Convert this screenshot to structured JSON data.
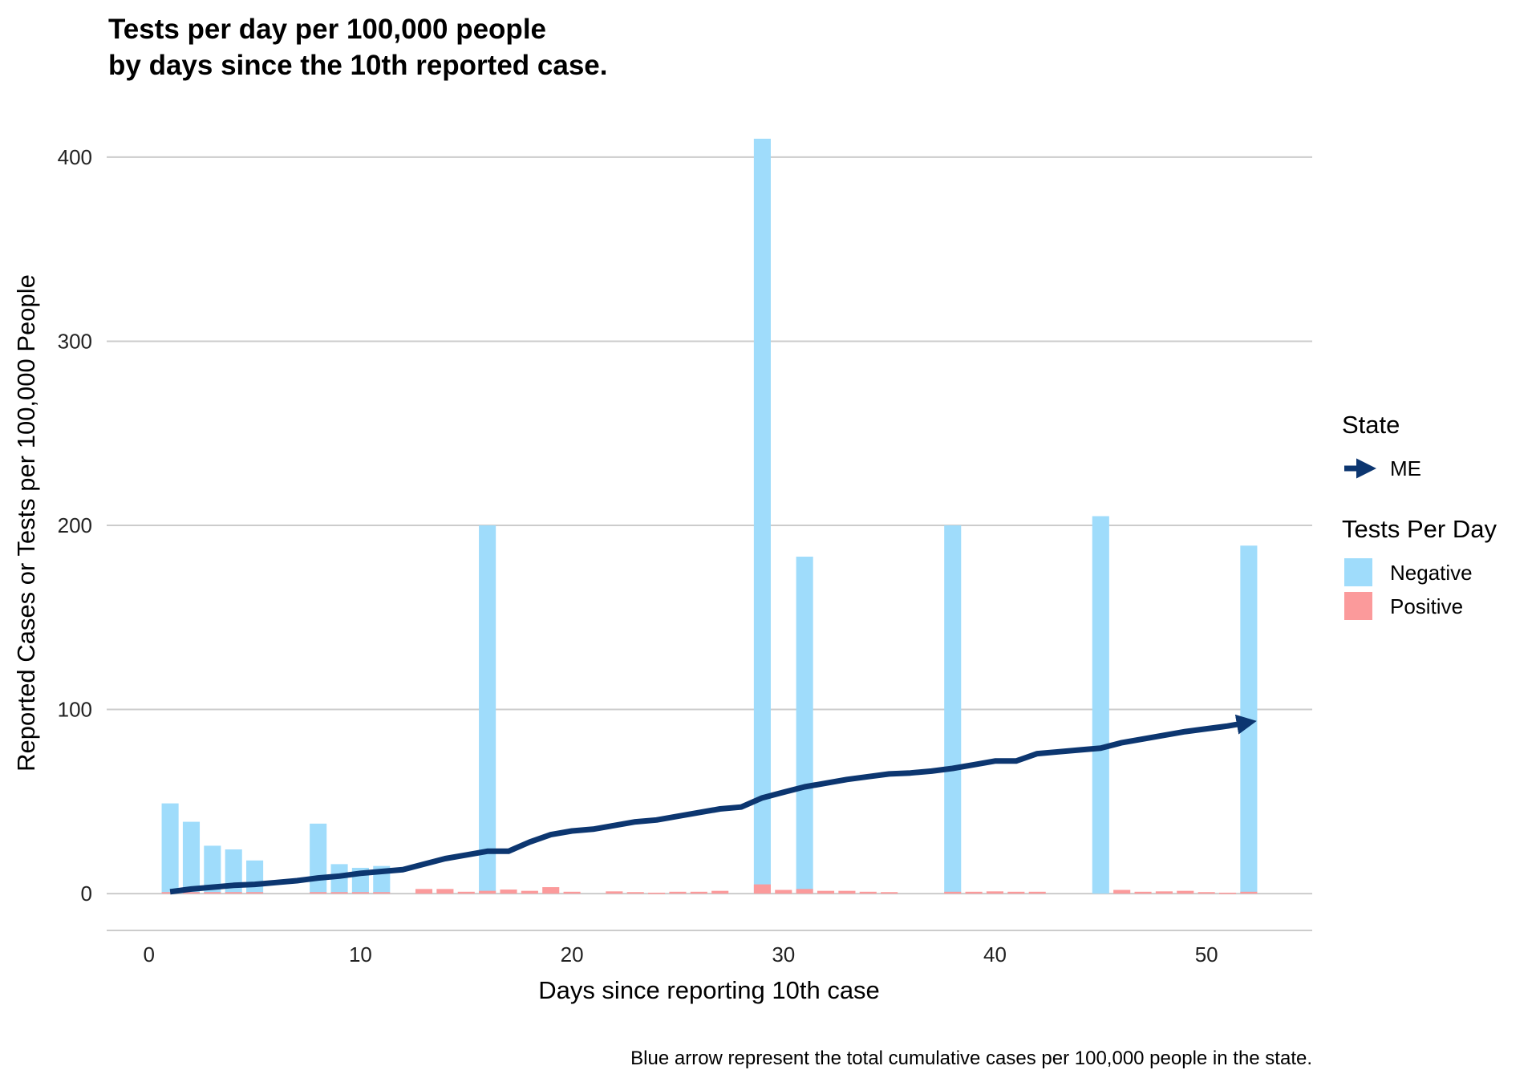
{
  "chart_data": {
    "type": "bar",
    "title_lines": [
      "Tests per day per 100,000 people",
      "by days since the 10th reported case."
    ],
    "xlabel": "Days since reporting 10th case",
    "ylabel": "Reported Cases or Tests per 100,000 People",
    "caption": "Blue arrow represent the total cumulative cases per 100,000 people in the state.",
    "xlim": [
      -2,
      55
    ],
    "ylim": [
      -20,
      420
    ],
    "x_ticks": [
      0,
      10,
      20,
      30,
      40,
      50
    ],
    "y_ticks": [
      0,
      100,
      200,
      300,
      400
    ],
    "grid": "horizontal",
    "legend_position": "right",
    "colors": {
      "negative": "#9fdcfb",
      "positive": "#fb9a9b",
      "line": "#0c3670"
    },
    "legend": {
      "state_title": "State",
      "state_items": [
        {
          "label": "ME"
        }
      ],
      "tests_title": "Tests Per Day",
      "tests_items": [
        {
          "label": "Negative",
          "key": "negative"
        },
        {
          "label": "Positive",
          "key": "positive"
        }
      ]
    },
    "bars": {
      "negative": [
        [
          1,
          49
        ],
        [
          2,
          39
        ],
        [
          3,
          26
        ],
        [
          4,
          24
        ],
        [
          5,
          18
        ],
        [
          8,
          38
        ],
        [
          9,
          16
        ],
        [
          10,
          14
        ],
        [
          11,
          15
        ],
        [
          16,
          200
        ],
        [
          29,
          410
        ],
        [
          31,
          183
        ],
        [
          38,
          200
        ],
        [
          45,
          205
        ],
        [
          52,
          189
        ]
      ],
      "positive": [
        [
          1,
          0.8
        ],
        [
          2,
          0.8
        ],
        [
          3,
          0.8
        ],
        [
          4,
          0.8
        ],
        [
          5,
          0.8
        ],
        [
          8,
          0.8
        ],
        [
          9,
          0.8
        ],
        [
          10,
          0.8
        ],
        [
          11,
          0.8
        ],
        [
          13,
          2.5
        ],
        [
          14,
          2.5
        ],
        [
          15,
          1
        ],
        [
          16,
          1.5
        ],
        [
          17,
          2.2
        ],
        [
          18,
          1.5
        ],
        [
          19,
          3.5
        ],
        [
          20,
          1
        ],
        [
          22,
          1.2
        ],
        [
          23,
          0.8
        ],
        [
          24,
          0.5
        ],
        [
          25,
          1
        ],
        [
          26,
          1
        ],
        [
          27,
          1.5
        ],
        [
          29,
          5
        ],
        [
          30,
          2
        ],
        [
          31,
          2.5
        ],
        [
          32,
          1.5
        ],
        [
          33,
          1.5
        ],
        [
          34,
          1
        ],
        [
          35,
          0.8
        ],
        [
          38,
          1
        ],
        [
          39,
          1
        ],
        [
          40,
          1.2
        ],
        [
          41,
          1
        ],
        [
          42,
          1
        ],
        [
          46,
          2
        ],
        [
          47,
          1
        ],
        [
          48,
          1.2
        ],
        [
          49,
          1.5
        ],
        [
          50,
          0.8
        ],
        [
          51,
          0.5
        ],
        [
          52,
          1
        ]
      ]
    },
    "series": [
      {
        "name": "ME",
        "points": [
          [
            1,
            1
          ],
          [
            2,
            2.5
          ],
          [
            3,
            3.5
          ],
          [
            4,
            4.5
          ],
          [
            5,
            5
          ],
          [
            6,
            6
          ],
          [
            7,
            7
          ],
          [
            8,
            8.5
          ],
          [
            9,
            9.5
          ],
          [
            10,
            11
          ],
          [
            11,
            12
          ],
          [
            12,
            13
          ],
          [
            13,
            16
          ],
          [
            14,
            19
          ],
          [
            15,
            21
          ],
          [
            16,
            23
          ],
          [
            17,
            23
          ],
          [
            18,
            28
          ],
          [
            19,
            32
          ],
          [
            20,
            34
          ],
          [
            21,
            35
          ],
          [
            22,
            37
          ],
          [
            23,
            39
          ],
          [
            24,
            40
          ],
          [
            25,
            42
          ],
          [
            26,
            44
          ],
          [
            27,
            46
          ],
          [
            28,
            47
          ],
          [
            29,
            52
          ],
          [
            30,
            55
          ],
          [
            31,
            58
          ],
          [
            32,
            60
          ],
          [
            33,
            62
          ],
          [
            34,
            63.5
          ],
          [
            35,
            65
          ],
          [
            36,
            65.5
          ],
          [
            37,
            66.5
          ],
          [
            38,
            68
          ],
          [
            39,
            70
          ],
          [
            40,
            72
          ],
          [
            41,
            72
          ],
          [
            42,
            76
          ],
          [
            43,
            77
          ],
          [
            44,
            78
          ],
          [
            45,
            79
          ],
          [
            46,
            82
          ],
          [
            47,
            84
          ],
          [
            48,
            86
          ],
          [
            49,
            88
          ],
          [
            50,
            89.5
          ],
          [
            51,
            91
          ],
          [
            52,
            93
          ]
        ]
      }
    ]
  }
}
